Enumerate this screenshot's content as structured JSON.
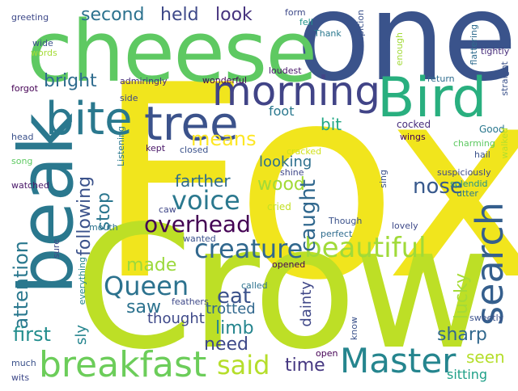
{
  "words": [
    {
      "id": "fox",
      "text": "Fox",
      "color": "#f1e51d"
    },
    {
      "id": "crow",
      "text": "Crow",
      "color": "#bddf26"
    },
    {
      "id": "one",
      "text": "one",
      "color": "#3a538b"
    },
    {
      "id": "cheese",
      "text": "cheese",
      "color": "#5ec962"
    },
    {
      "id": "beak",
      "text": "beak",
      "color": "#2a788e"
    },
    {
      "id": "bird",
      "text": "Bird",
      "color": "#29af7f"
    },
    {
      "id": "morning",
      "text": "morning",
      "color": "#414487"
    },
    {
      "id": "tree",
      "text": "tree",
      "color": "#3b528b"
    },
    {
      "id": "bite",
      "text": "bite",
      "color": "#2a788e"
    },
    {
      "id": "search",
      "text": "search",
      "color": "#355f8d"
    },
    {
      "id": "breakfast",
      "text": "breakfast",
      "color": "#6ccd5a"
    },
    {
      "id": "master",
      "text": "Master",
      "color": "#25858e"
    },
    {
      "id": "beautiful",
      "text": "beautiful",
      "color": "#a0da39"
    },
    {
      "id": "creature",
      "text": "creature",
      "color": "#31688e"
    },
    {
      "id": "queen",
      "text": "Queen",
      "color": "#2c728e"
    },
    {
      "id": "voice",
      "text": "voice",
      "color": "#2a788e"
    },
    {
      "id": "said",
      "text": "said",
      "color": "#b5de2b"
    },
    {
      "id": "overhead",
      "text": "overhead",
      "color": "#440154"
    },
    {
      "id": "second",
      "text": "second",
      "color": "#2c728e"
    },
    {
      "id": "held",
      "text": "held",
      "color": "#3e4989"
    },
    {
      "id": "look",
      "text": "look",
      "color": "#46337e"
    },
    {
      "id": "bright",
      "text": "bright",
      "color": "#2f6c8e"
    },
    {
      "id": "means",
      "text": "means",
      "color": "#fde725"
    },
    {
      "id": "following",
      "text": "following",
      "color": "#3b528b"
    },
    {
      "id": "stop",
      "text": "stop",
      "color": "#2a768e"
    },
    {
      "id": "farther",
      "text": "farther",
      "color": "#2f6c8e"
    },
    {
      "id": "wood",
      "text": "wood",
      "color": "#a2da37"
    },
    {
      "id": "caught",
      "text": "caught",
      "color": "#31688e"
    },
    {
      "id": "nose",
      "text": "nose",
      "color": "#38598c"
    },
    {
      "id": "attention",
      "text": "attention",
      "color": "#2a788e"
    },
    {
      "id": "made",
      "text": "made",
      "color": "#9bd93c"
    },
    {
      "id": "eat",
      "text": "eat",
      "color": "#3b528b"
    },
    {
      "id": "saw",
      "text": "saw",
      "color": "#2c728e"
    },
    {
      "id": "thought",
      "text": "thought",
      "color": "#3e4989"
    },
    {
      "id": "trotted",
      "text": "trotted",
      "color": "#31688e"
    },
    {
      "id": "limb",
      "text": "limb",
      "color": "#25858e"
    },
    {
      "id": "need",
      "text": "need",
      "color": "#3e4989"
    },
    {
      "id": "first",
      "text": "first",
      "color": "#228d8d"
    },
    {
      "id": "time",
      "text": "time",
      "color": "#453781"
    },
    {
      "id": "sharp",
      "text": "sharp",
      "color": "#31688e"
    },
    {
      "id": "seen",
      "text": "seen",
      "color": "#b5de2b"
    },
    {
      "id": "sitting",
      "text": "sitting",
      "color": "#1fa088"
    },
    {
      "id": "lucky",
      "text": "lucky",
      "color": "#a5db36"
    },
    {
      "id": "dainty",
      "text": "dainty",
      "color": "#3f4788"
    },
    {
      "id": "sly",
      "text": "sly",
      "color": "#25858e"
    },
    {
      "id": "foot",
      "text": "foot",
      "color": "#2a788e"
    },
    {
      "id": "bit",
      "text": "bit",
      "color": "#22a884"
    },
    {
      "id": "looking",
      "text": "looking",
      "color": "#2d708e"
    },
    {
      "id": "cried",
      "text": "cried",
      "color": "#c2df23"
    },
    {
      "id": "shine",
      "text": "shine",
      "color": "#3f4788"
    },
    {
      "id": "cracked",
      "text": "cracked",
      "color": "#d0e11c"
    },
    {
      "id": "closed",
      "text": "closed",
      "color": "#3b528b"
    },
    {
      "id": "kept",
      "text": "kept",
      "color": "#481668"
    },
    {
      "id": "caw",
      "text": "caw",
      "color": "#3f4788"
    },
    {
      "id": "cocked",
      "text": "cocked",
      "color": "#472d7b"
    },
    {
      "id": "wings",
      "text": "wings",
      "color": "#440154"
    },
    {
      "id": "good",
      "text": "Good",
      "color": "#2a788e"
    },
    {
      "id": "charming",
      "text": "charming",
      "color": "#5ec962"
    },
    {
      "id": "hail",
      "text": "hail",
      "color": "#3b528b"
    },
    {
      "id": "walked",
      "text": "walked",
      "color": "#b5de2b"
    },
    {
      "id": "suspiciously",
      "text": "suspiciously",
      "color": "#3e4a89"
    },
    {
      "id": "splendid",
      "text": "splendid",
      "color": "#20928c"
    },
    {
      "id": "utter",
      "text": "utter",
      "color": "#2a788e"
    },
    {
      "id": "sing",
      "text": "sing",
      "color": "#3b528b"
    },
    {
      "id": "though",
      "text": "Though",
      "color": "#3b528b"
    },
    {
      "id": "perfect",
      "text": "perfect",
      "color": "#2f6c8e"
    },
    {
      "id": "lovely",
      "text": "lovely",
      "color": "#3e4989"
    },
    {
      "id": "wanted",
      "text": "wanted",
      "color": "#3b528b"
    },
    {
      "id": "opened",
      "text": "opened",
      "color": "#440154"
    },
    {
      "id": "called",
      "text": "called",
      "color": "#2c728e"
    },
    {
      "id": "feathers",
      "text": "feathers",
      "color": "#3e4989"
    },
    {
      "id": "admiringly",
      "text": "admiringly",
      "color": "#472d7b"
    },
    {
      "id": "wonderful",
      "text": "wonderful",
      "color": "#440154"
    },
    {
      "id": "loudest",
      "text": "loudest",
      "color": "#481668"
    },
    {
      "id": "side",
      "text": "side",
      "color": "#3e4989"
    },
    {
      "id": "form",
      "text": "form",
      "color": "#3e4989"
    },
    {
      "id": "fell",
      "text": "fell",
      "color": "#1f958b"
    },
    {
      "id": "thank",
      "text": "Thank",
      "color": "#2a788e"
    },
    {
      "id": "suspicion",
      "text": "suspicion",
      "color": "#3b528b"
    },
    {
      "id": "enough",
      "text": "enough",
      "color": "#a2da37"
    },
    {
      "id": "flattering",
      "text": "flattering",
      "color": "#2f6c8e"
    },
    {
      "id": "tightly",
      "text": "tightly",
      "color": "#472d7b"
    },
    {
      "id": "return",
      "text": "return",
      "color": "#2f6c8e"
    },
    {
      "id": "straight",
      "text": "straight",
      "color": "#3b528b"
    },
    {
      "id": "greeting",
      "text": "greeting",
      "color": "#3e4989"
    },
    {
      "id": "wide",
      "text": "wide",
      "color": "#3b528b"
    },
    {
      "id": "words",
      "text": "words",
      "color": "#a5db36"
    },
    {
      "id": "forgot",
      "text": "forgot",
      "color": "#440154"
    },
    {
      "id": "head",
      "text": "head",
      "color": "#3b528b"
    },
    {
      "id": "listening",
      "text": "Listening",
      "color": "#2a788e"
    },
    {
      "id": "song",
      "text": "song",
      "color": "#5ec962"
    },
    {
      "id": "watched",
      "text": "watched",
      "color": "#481668"
    },
    {
      "id": "mouth",
      "text": "mouth",
      "color": "#2c728e"
    },
    {
      "id": "sure",
      "text": "sure",
      "color": "#3e4989"
    },
    {
      "id": "everything",
      "text": "everything",
      "color": "#25858e"
    },
    {
      "id": "much",
      "text": "much",
      "color": "#3b528b"
    },
    {
      "id": "wits",
      "text": "wits",
      "color": "#3e4989"
    },
    {
      "id": "open",
      "text": "open",
      "color": "#440154"
    },
    {
      "id": "know",
      "text": "know",
      "color": "#3b528b"
    },
    {
      "id": "sweetly",
      "text": "sweetly",
      "color": "#3b528b"
    }
  ]
}
